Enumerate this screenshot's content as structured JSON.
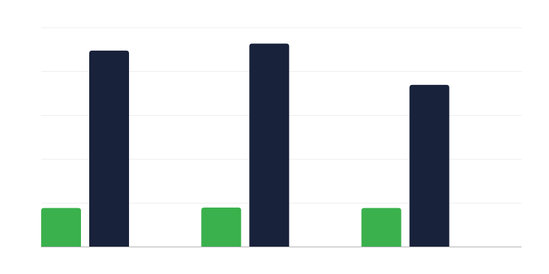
{
  "chart_data": {
    "type": "bar",
    "title": "",
    "xlabel": "",
    "ylabel": "",
    "categories": [
      "",
      "",
      ""
    ],
    "ylim": [
      0,
      5
    ],
    "grid": true,
    "legend": "none",
    "series": [
      {
        "color": "#3ab14d",
        "values": [
          0.88,
          0.89,
          0.88
        ]
      },
      {
        "color": "#19223b",
        "values": [
          4.47,
          4.63,
          3.69
        ]
      }
    ]
  }
}
